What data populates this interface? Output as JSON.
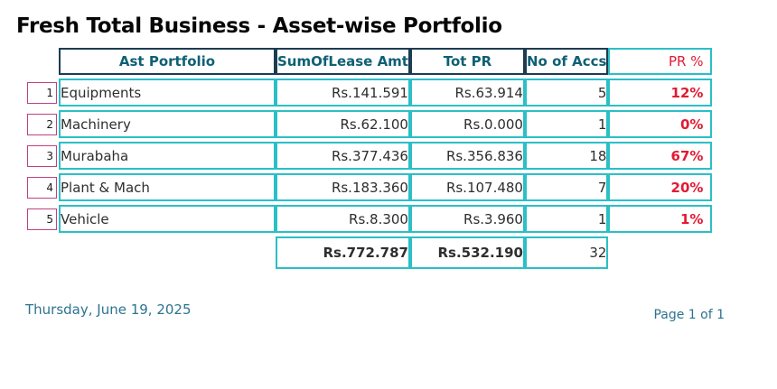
{
  "title": "Fresh Total Business - Asset-wise Portfolio",
  "table": {
    "headers": {
      "asset": "Ast Portfolio",
      "lease": "SumOfLease Amt",
      "tot_pr": "Tot PR",
      "accs": "No of Accs",
      "pr_pct": "PR %"
    },
    "rows": [
      {
        "num": "1",
        "asset": "Equipments",
        "lease": "Rs.141.591",
        "tot_pr": "Rs.63.914",
        "accs": "5",
        "pr_pct": "12%"
      },
      {
        "num": "2",
        "asset": "Machinery",
        "lease": "Rs.62.100",
        "tot_pr": "Rs.0.000",
        "accs": "1",
        "pr_pct": "0%"
      },
      {
        "num": "3",
        "asset": "Murabaha",
        "lease": "Rs.377.436",
        "tot_pr": "Rs.356.836",
        "accs": "18",
        "pr_pct": "67%"
      },
      {
        "num": "4",
        "asset": "Plant & Mach",
        "lease": "Rs.183.360",
        "tot_pr": "Rs.107.480",
        "accs": "7",
        "pr_pct": "20%"
      },
      {
        "num": "5",
        "asset": "Vehicle",
        "lease": "Rs.8.300",
        "tot_pr": "Rs.3.960",
        "accs": "1",
        "pr_pct": "1%"
      }
    ],
    "totals": {
      "lease": "Rs.772.787",
      "tot_pr": "Rs.532.190",
      "accs": "32"
    }
  },
  "footer": {
    "date": "Thursday, June 19, 2025",
    "page": "Page 1 of 1"
  },
  "colors": {
    "header_border": "#1c3c52",
    "header_text": "#0f6075",
    "grid_border": "#2bbfc7",
    "record_selector_border": "#c04080",
    "pr_percent_red": "#e11b33",
    "total_lease_blue": "#2121d8",
    "total_pr_red": "#ce2127",
    "footer_text": "#2c7391",
    "title_text": "#060606"
  }
}
